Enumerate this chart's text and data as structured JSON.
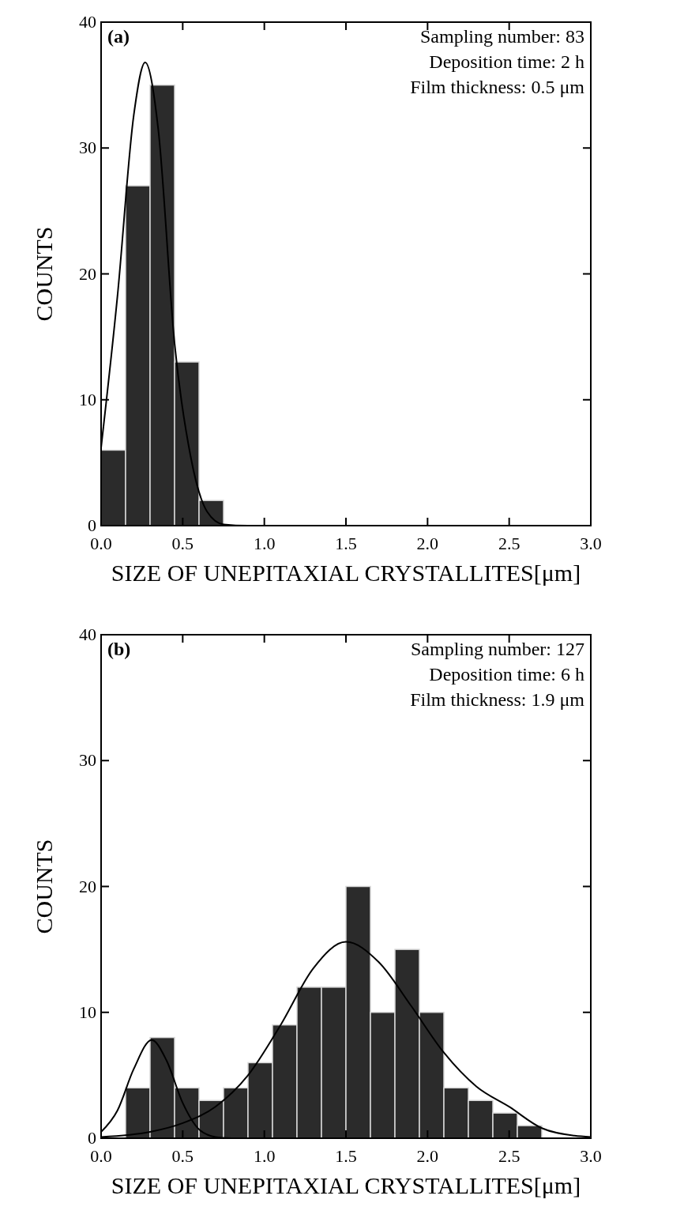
{
  "chart_data": [
    {
      "type": "histogram",
      "xlabel": "SIZE OF UNEPITAXIAL CRYSTALLITES[μm]",
      "ylabel": "COUNTS",
      "annotations": [
        "(a)",
        "Sampling number: 83",
        "Deposition time: 2 h",
        "Film thickness: 0.5 μm"
      ],
      "xlim": [
        0,
        3
      ],
      "ylim": [
        0,
        40
      ],
      "xticks": [
        {
          "value": 0,
          "label": "0.0"
        },
        0.5,
        {
          "value": 1,
          "label": "1.0"
        },
        1.5,
        {
          "value": 2,
          "label": "2.0"
        },
        2.5,
        {
          "value": 3,
          "label": "3.0"
        }
      ],
      "yticks": [
        0,
        10,
        20,
        30,
        40
      ],
      "series": [
        {
          "type": "histogram",
          "color": "#2b2b2b",
          "bins": [
            0,
            0.15,
            0.3,
            0.45,
            0.6,
            0.75
          ],
          "values": [
            6,
            27,
            35,
            13,
            2
          ]
        },
        {
          "type": "line",
          "color": "#000000",
          "x": [
            0,
            0.1,
            0.2,
            0.27,
            0.35,
            0.45,
            0.55,
            0.65,
            0.75,
            0.9,
            1.5,
            3.0
          ],
          "values": [
            6.2,
            18.2,
            32.6,
            36.8,
            31.5,
            14.5,
            5.4,
            1.1,
            0.1,
            0,
            0,
            0
          ]
        }
      ]
    },
    {
      "type": "histogram",
      "xlabel": "SIZE OF UNEPITAXIAL CRYSTALLITES[μm]",
      "ylabel": "COUNTS",
      "annotations": [
        "(b)",
        "Sampling number: 127",
        "Deposition time: 6 h",
        "Film thickness: 1.9 μm"
      ],
      "xlim": [
        0,
        3
      ],
      "ylim": [
        0,
        40
      ],
      "xticks": [
        {
          "value": 0,
          "label": "0.0"
        },
        0.5,
        {
          "value": 1,
          "label": "1.0"
        },
        1.5,
        {
          "value": 2,
          "label": "2.0"
        },
        2.5,
        {
          "value": 3,
          "label": "3.0"
        }
      ],
      "yticks": [
        0,
        10,
        20,
        30,
        40
      ],
      "series": [
        {
          "type": "histogram",
          "color": "#2b2b2b",
          "bins": [
            0.15,
            0.3,
            0.45,
            0.6,
            0.75,
            0.9,
            1.05,
            1.2,
            1.35,
            1.5,
            1.65,
            1.8,
            1.95,
            2.1,
            2.25,
            2.4,
            2.55,
            2.7
          ],
          "values": [
            4,
            8,
            4,
            3,
            4,
            6,
            9,
            12,
            12,
            20,
            10,
            15,
            10,
            4,
            3,
            2,
            1
          ]
        },
        {
          "type": "line",
          "color": "#000000",
          "x": [
            0,
            0.1,
            0.2,
            0.31,
            0.4,
            0.5,
            0.6,
            0.7,
            0.8
          ],
          "values": [
            0.5,
            2.2,
            5.5,
            7.8,
            6.2,
            2.8,
            0.7,
            0.1,
            0
          ]
        },
        {
          "type": "line",
          "color": "#000000",
          "x": [
            0,
            0.3,
            0.5,
            0.7,
            0.9,
            1.1,
            1.3,
            1.5,
            1.7,
            1.9,
            2.1,
            2.3,
            2.5,
            2.7,
            2.9,
            3.0
          ],
          "values": [
            0.1,
            0.5,
            1.2,
            2.5,
            5,
            9,
            13.5,
            15.6,
            14,
            10.5,
            6.8,
            4.1,
            2.5,
            0.8,
            0.2,
            0.1
          ]
        }
      ]
    }
  ]
}
